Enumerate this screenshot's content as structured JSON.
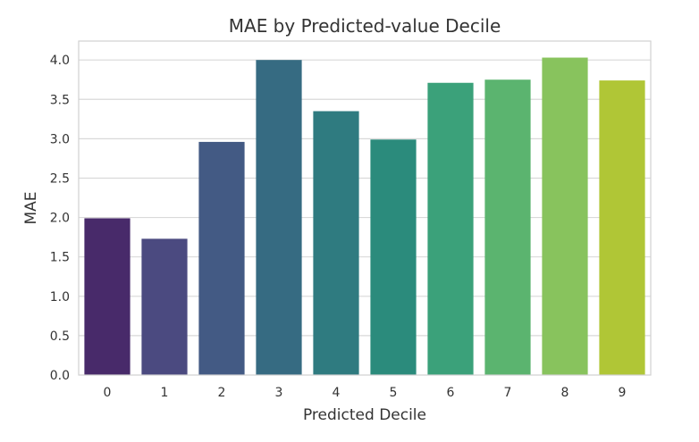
{
  "chart_data": {
    "type": "bar",
    "title": "MAE by Predicted-value Decile",
    "xlabel": "Predicted Decile",
    "ylabel": "MAE",
    "categories": [
      "0",
      "1",
      "2",
      "3",
      "4",
      "5",
      "6",
      "7",
      "8",
      "9"
    ],
    "values": [
      1.99,
      1.73,
      2.96,
      4.0,
      3.35,
      2.99,
      3.71,
      3.75,
      4.03,
      3.74
    ],
    "ylim": [
      0,
      4.24
    ],
    "yticks": [
      "0.0",
      "0.5",
      "1.0",
      "1.5",
      "2.0",
      "2.5",
      "3.0",
      "3.5",
      "4.0"
    ],
    "grid": "horizontal",
    "colors": [
      "#482a6a",
      "#4b4a80",
      "#435a84",
      "#366b82",
      "#2f7b80",
      "#2b8b7c",
      "#3ba17a",
      "#5bb46f",
      "#88c35d",
      "#b0c636"
    ]
  }
}
